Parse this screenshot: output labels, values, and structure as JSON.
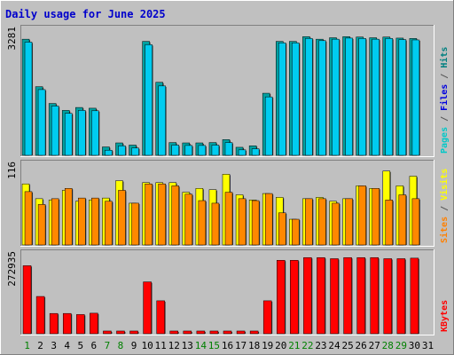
{
  "chart_data": {
    "type": "bar",
    "title": "Daily usage for June 2025",
    "days": [
      "1",
      "2",
      "3",
      "4",
      "5",
      "6",
      "7",
      "8",
      "9",
      "10",
      "11",
      "12",
      "13",
      "14",
      "15",
      "16",
      "17",
      "18",
      "19",
      "20",
      "21",
      "22",
      "23",
      "24",
      "25",
      "26",
      "27",
      "28",
      "29",
      "30",
      "31"
    ],
    "weekend_days": [
      "1",
      "7",
      "8",
      "14",
      "15",
      "21",
      "22",
      "28",
      "29"
    ],
    "panels": [
      {
        "name": "hits-files-pages",
        "max_label": "3281",
        "ymax": 3281,
        "legend": [
          {
            "text": "Pages",
            "color": "#00c8c8"
          },
          {
            "text": " / ",
            "color": "#555555"
          },
          {
            "text": "Files",
            "color": "#0000e0"
          },
          {
            "text": " / ",
            "color": "#555555"
          },
          {
            "text": "Hits",
            "color": "#008080"
          }
        ],
        "series": [
          {
            "name": "Hits",
            "color": "#00a0a0",
            "values": [
              3180,
              1880,
              1420,
              1230,
              1310,
              1290,
              230,
              340,
              280,
              3120,
              2000,
              350,
              340,
              340,
              350,
              430,
              220,
              260,
              1700,
              3120,
              3120,
              3250,
              3180,
              3220,
              3250,
              3240,
              3220,
              3240,
              3210,
              3200,
              0
            ]
          },
          {
            "name": "Files",
            "color": "#00ccf0",
            "values": [
              3100,
              1800,
              1350,
              1150,
              1230,
              1220,
              140,
              260,
              200,
              3030,
              1900,
              280,
              270,
              270,
              280,
              350,
              150,
              180,
              1600,
              3080,
              3080,
              3200,
              3140,
              3180,
              3210,
              3200,
              3180,
              3200,
              3170,
              3160,
              0
            ]
          }
        ]
      },
      {
        "name": "visits-sites",
        "max_label": "116",
        "ymax": 116,
        "legend": [
          {
            "text": "Sites",
            "color": "#ff8000"
          },
          {
            "text": " / ",
            "color": "#555555"
          },
          {
            "text": "Visits",
            "color": "#ffff00"
          }
        ],
        "series": [
          {
            "name": "Visits",
            "color": "#ffff00",
            "values": [
              95,
              72,
              70,
              85,
              68,
              70,
              73,
              100,
              65,
              97,
              97,
              97,
              82,
              88,
              86,
              110,
              78,
              70,
              80,
              74,
              40,
              72,
              74,
              68,
              72,
              92,
              88,
              115,
              92,
              107,
              0
            ]
          },
          {
            "name": "Sites",
            "color": "#ff8800",
            "values": [
              83,
              63,
              72,
              88,
              73,
              73,
              68,
              85,
              65,
              95,
              95,
              92,
              79,
              69,
              65,
              82,
              72,
              69,
              80,
              50,
              40,
              72,
              72,
              65,
              72,
              92,
              88,
              70,
              78,
              72,
              0
            ]
          }
        ]
      },
      {
        "name": "kbytes",
        "max_label": "272935",
        "ymax": 272935,
        "legend": [
          {
            "text": "KBytes",
            "color": "#ff0000"
          }
        ],
        "series": [
          {
            "name": "KBytes",
            "color": "#ff0000",
            "values": [
              252000,
              138000,
              75000,
              75000,
              71000,
              76000,
              10000,
              10000,
              10000,
              192000,
              122000,
              10000,
              10000,
              10000,
              10000,
              10000,
              10000,
              10000,
              122000,
              272000,
              272000,
              282000,
              282000,
              278000,
              282000,
              282000,
              282000,
              278000,
              278000,
              280000,
              0
            ]
          }
        ]
      }
    ]
  }
}
